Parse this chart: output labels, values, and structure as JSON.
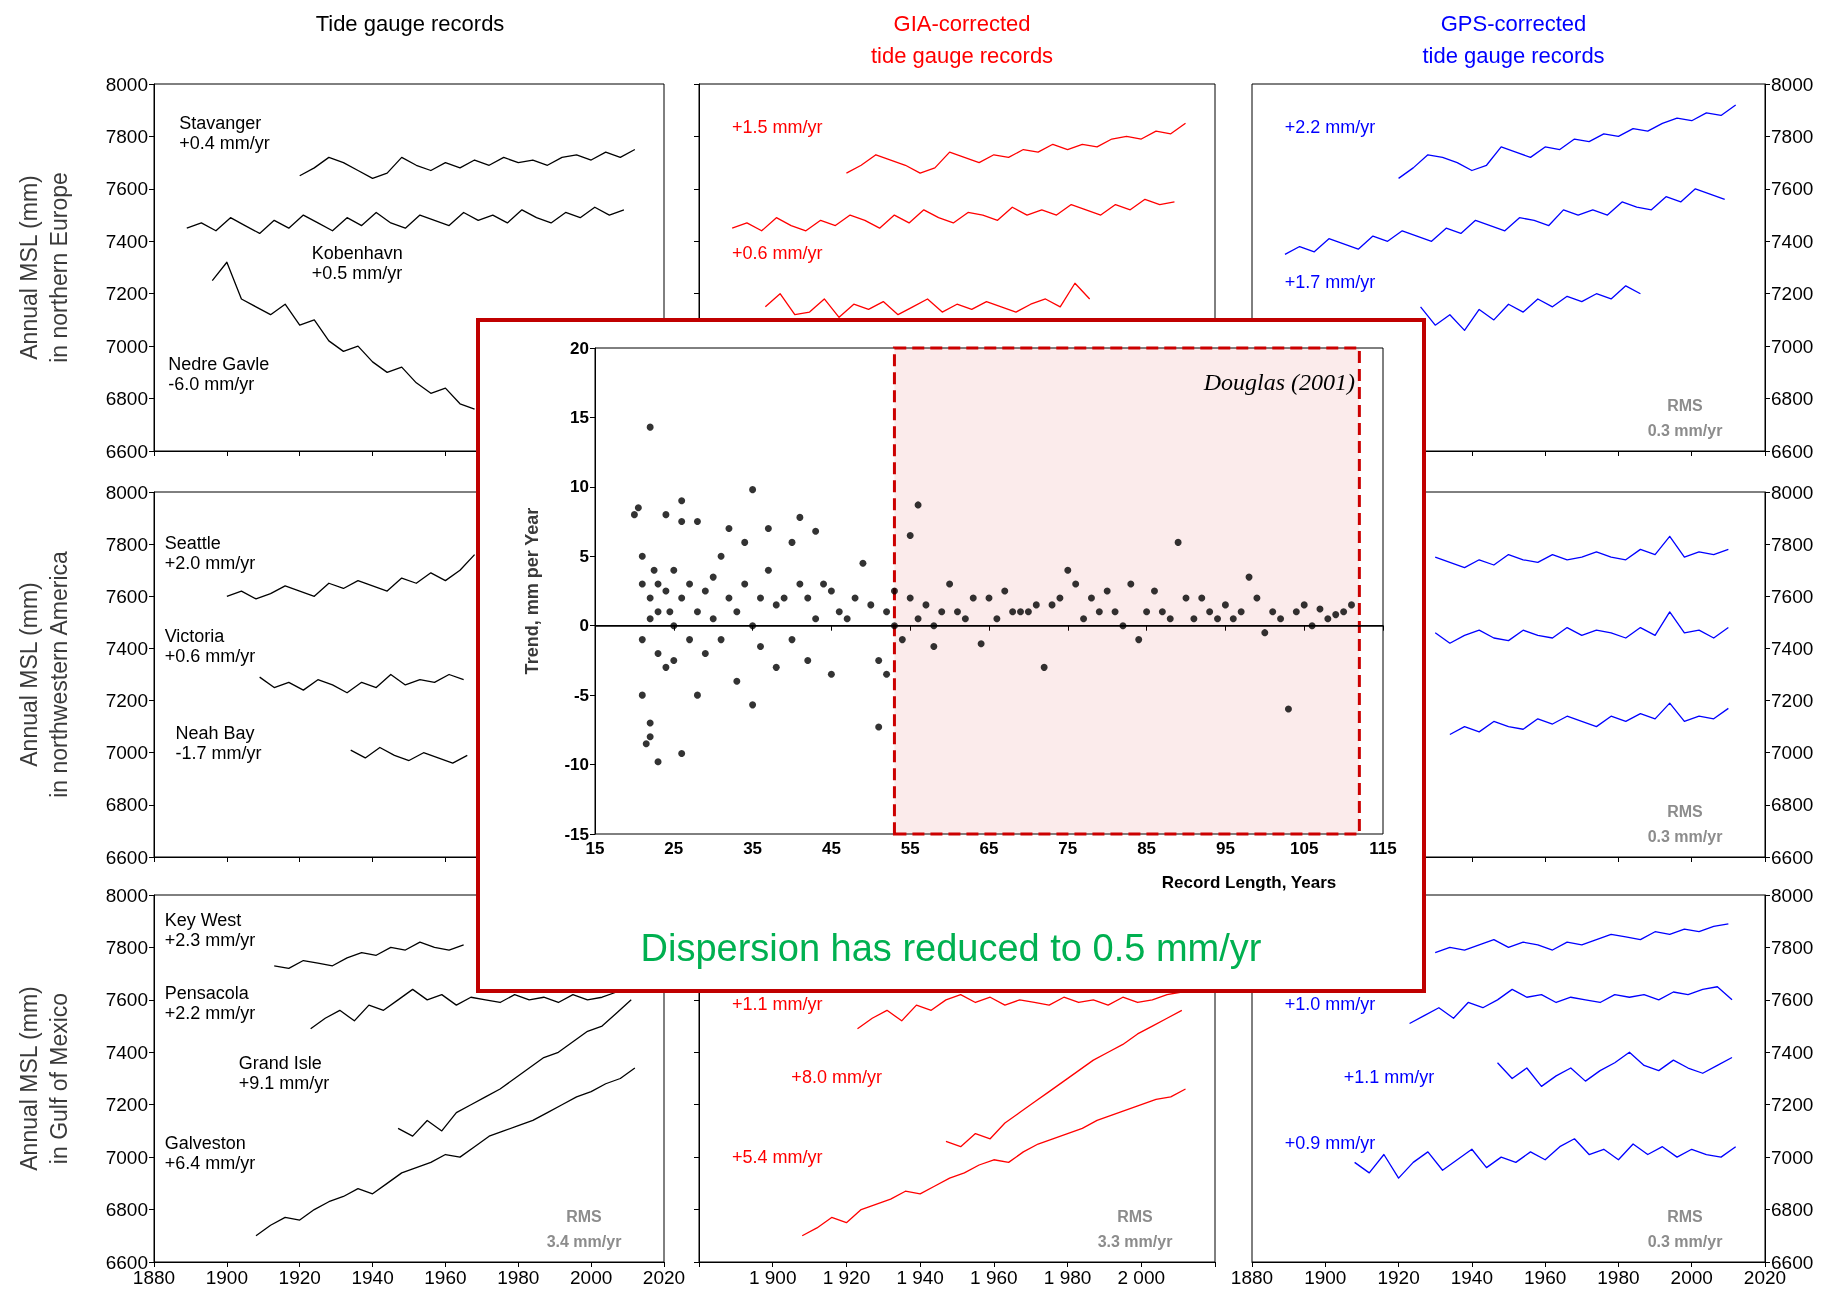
{
  "chart_data": [
    {
      "type": "line",
      "title": "Tide gauge records",
      "ylabel": "Annual MSL (mm)\nin northern Europe",
      "xlim": [
        1880,
        2020
      ],
      "ylim": [
        6600,
        8000
      ],
      "xticks": [
        1880,
        1900,
        1920,
        1940,
        1960,
        1980,
        2000,
        2020
      ],
      "yticks": [
        6600,
        6800,
        7000,
        7200,
        7400,
        7600,
        7800,
        8000
      ],
      "tick_labels": "y",
      "marker": "none",
      "series": [
        {
          "color": "#000000",
          "x": [
            1920,
            1924,
            1928,
            1932,
            1936,
            1940,
            1944,
            1948,
            1952,
            1956,
            1960,
            1964,
            1968,
            1972,
            1976,
            1980,
            1984,
            1988,
            1992,
            1996,
            2000,
            2004,
            2008,
            2012
          ],
          "values": [
            7650,
            7680,
            7720,
            7700,
            7670,
            7640,
            7660,
            7720,
            7690,
            7670,
            7700,
            7680,
            7710,
            7690,
            7720,
            7700,
            7710,
            7690,
            7720,
            7730,
            7710,
            7740,
            7720,
            7750
          ]
        },
        {
          "color": "#000000",
          "x": [
            1889,
            1893,
            1897,
            1901,
            1905,
            1909,
            1913,
            1917,
            1921,
            1925,
            1929,
            1933,
            1937,
            1941,
            1945,
            1949,
            1953,
            1957,
            1961,
            1965,
            1969,
            1973,
            1977,
            1981,
            1985,
            1989,
            1993,
            1997,
            2001,
            2005,
            2009
          ],
          "values": [
            7450,
            7470,
            7440,
            7490,
            7460,
            7430,
            7480,
            7450,
            7500,
            7470,
            7440,
            7490,
            7460,
            7510,
            7470,
            7450,
            7500,
            7480,
            7460,
            7510,
            7480,
            7500,
            7470,
            7520,
            7490,
            7470,
            7510,
            7490,
            7530,
            7500,
            7520
          ]
        },
        {
          "color": "#000000",
          "x": [
            1896,
            1900,
            1904,
            1908,
            1912,
            1916,
            1920,
            1924,
            1928,
            1932,
            1936,
            1940,
            1944,
            1948,
            1952,
            1956,
            1960,
            1964,
            1968
          ],
          "values": [
            7250,
            7320,
            7180,
            7150,
            7120,
            7160,
            7080,
            7100,
            7020,
            6980,
            7000,
            6940,
            6900,
            6920,
            6860,
            6820,
            6840,
            6780,
            6760
          ]
        }
      ],
      "annotations": [
        "Stavanger\n+0.4 mm/yr",
        "Kobenhavn\n+0.5 mm/yr",
        "Nedre Gavle\n-6.0 mm/yr"
      ]
    },
    {
      "type": "line",
      "title": "GIA-corrected\ntide gauge records",
      "xlim": [
        1880,
        2020
      ],
      "ylim": [
        6600,
        8000
      ],
      "xticks": [
        1880,
        1900,
        1920,
        1940,
        1960,
        1980,
        2000,
        2020
      ],
      "yticks": [
        6600,
        6800,
        7000,
        7200,
        7400,
        7600,
        7800,
        8000
      ],
      "tick_labels": false,
      "marker": "none",
      "series": [
        {
          "color": "#ff0000",
          "x": [
            1920,
            1924,
            1928,
            1932,
            1936,
            1940,
            1944,
            1948,
            1952,
            1956,
            1960,
            1964,
            1968,
            1972,
            1976,
            1980,
            1984,
            1988,
            1992,
            1996,
            2000,
            2004,
            2008,
            2012
          ],
          "values": [
            7660,
            7690,
            7730,
            7710,
            7690,
            7660,
            7680,
            7740,
            7720,
            7700,
            7730,
            7720,
            7750,
            7740,
            7770,
            7750,
            7770,
            7760,
            7790,
            7800,
            7790,
            7820,
            7810,
            7850
          ]
        },
        {
          "color": "#ff0000",
          "x": [
            1889,
            1893,
            1897,
            1901,
            1905,
            1909,
            1913,
            1917,
            1921,
            1925,
            1929,
            1933,
            1937,
            1941,
            1945,
            1949,
            1953,
            1957,
            1961,
            1965,
            1969,
            1973,
            1977,
            1981,
            1985,
            1989,
            1993,
            1997,
            2001,
            2005,
            2009
          ],
          "values": [
            7450,
            7470,
            7440,
            7490,
            7460,
            7440,
            7480,
            7460,
            7500,
            7480,
            7450,
            7500,
            7470,
            7520,
            7490,
            7470,
            7510,
            7500,
            7480,
            7530,
            7500,
            7520,
            7500,
            7540,
            7520,
            7500,
            7540,
            7520,
            7560,
            7540,
            7550
          ]
        },
        {
          "color": "#ff0000",
          "x": [
            1898,
            1902,
            1906,
            1910,
            1914,
            1918,
            1922,
            1926,
            1930,
            1934,
            1938,
            1942,
            1946,
            1950,
            1954,
            1958,
            1962,
            1966,
            1970,
            1974,
            1978,
            1982,
            1986
          ],
          "values": [
            7150,
            7200,
            7120,
            7130,
            7180,
            7110,
            7160,
            7140,
            7170,
            7120,
            7150,
            7180,
            7130,
            7160,
            7140,
            7170,
            7150,
            7130,
            7160,
            7180,
            7150,
            7240,
            7180
          ]
        }
      ],
      "annotations": [
        "+1.5 mm/yr",
        "+0.6 mm/yr"
      ]
    },
    {
      "type": "line",
      "title": "GPS-corrected\ntide gauge records",
      "xlim": [
        1880,
        2020
      ],
      "ylim": [
        6600,
        8000
      ],
      "xticks": [
        1880,
        1900,
        1920,
        1940,
        1960,
        1980,
        2000,
        2020
      ],
      "yticks": [
        6600,
        6800,
        7000,
        7200,
        7400,
        7600,
        7800,
        8000
      ],
      "tick_labels": "y",
      "marker": "none",
      "series": [
        {
          "color": "#0000ff",
          "x": [
            1920,
            1924,
            1928,
            1932,
            1936,
            1940,
            1944,
            1948,
            1952,
            1956,
            1960,
            1964,
            1968,
            1972,
            1976,
            1980,
            1984,
            1988,
            1992,
            1996,
            2000,
            2004,
            2008,
            2012
          ],
          "values": [
            7640,
            7680,
            7730,
            7720,
            7700,
            7670,
            7690,
            7760,
            7740,
            7720,
            7760,
            7750,
            7790,
            7780,
            7810,
            7800,
            7830,
            7820,
            7850,
            7870,
            7860,
            7890,
            7880,
            7920
          ]
        },
        {
          "color": "#0000ff",
          "x": [
            1889,
            1893,
            1897,
            1901,
            1905,
            1909,
            1913,
            1917,
            1921,
            1925,
            1929,
            1933,
            1937,
            1941,
            1945,
            1949,
            1953,
            1957,
            1961,
            1965,
            1969,
            1973,
            1977,
            1981,
            1985,
            1989,
            1993,
            1997,
            2001,
            2005,
            2009
          ],
          "values": [
            7350,
            7380,
            7360,
            7410,
            7390,
            7370,
            7420,
            7400,
            7440,
            7420,
            7400,
            7450,
            7430,
            7480,
            7460,
            7440,
            7490,
            7480,
            7460,
            7520,
            7500,
            7520,
            7500,
            7550,
            7530,
            7520,
            7570,
            7550,
            7600,
            7580,
            7560
          ]
        },
        {
          "color": "#0000ff",
          "x": [
            1926,
            1930,
            1934,
            1938,
            1942,
            1946,
            1950,
            1954,
            1958,
            1962,
            1966,
            1970,
            1974,
            1978,
            1982,
            1986
          ],
          "values": [
            7150,
            7080,
            7120,
            7060,
            7140,
            7100,
            7160,
            7130,
            7180,
            7150,
            7190,
            7170,
            7200,
            7180,
            7230,
            7200
          ]
        }
      ],
      "annotations": [
        "+2.2 mm/yr",
        "+1.7 mm/yr",
        "RMS\n0.3 mm/yr"
      ]
    },
    {
      "type": "line",
      "ylabel": "Annual MSL (mm)\nin northwestern America",
      "xlim": [
        1880,
        2020
      ],
      "ylim": [
        6600,
        8000
      ],
      "xticks": [
        1880,
        1900,
        1920,
        1940,
        1960,
        1980,
        2000,
        2020
      ],
      "yticks": [
        6600,
        6800,
        7000,
        7200,
        7400,
        7600,
        7800,
        8000
      ],
      "tick_labels": "y",
      "marker": "none",
      "series": [
        {
          "color": "#000000",
          "x": [
            1900,
            1904,
            1908,
            1912,
            1916,
            1920,
            1924,
            1928,
            1932,
            1936,
            1940,
            1944,
            1948,
            1952,
            1956,
            1960,
            1964,
            1968
          ],
          "values": [
            7600,
            7620,
            7590,
            7610,
            7640,
            7620,
            7600,
            7650,
            7630,
            7660,
            7640,
            7620,
            7670,
            7650,
            7690,
            7660,
            7700,
            7760
          ]
        },
        {
          "color": "#000000",
          "x": [
            1909,
            1913,
            1917,
            1921,
            1925,
            1929,
            1933,
            1937,
            1941,
            1945,
            1949,
            1953,
            1957,
            1961,
            1965
          ],
          "values": [
            7290,
            7250,
            7270,
            7240,
            7280,
            7260,
            7230,
            7270,
            7250,
            7300,
            7260,
            7280,
            7270,
            7300,
            7280
          ]
        },
        {
          "color": "#000000",
          "x": [
            1934,
            1938,
            1942,
            1946,
            1950,
            1954,
            1958,
            1962,
            1966
          ],
          "values": [
            7010,
            6980,
            7020,
            6990,
            6970,
            7000,
            6980,
            6960,
            6990
          ]
        }
      ],
      "annotations": [
        "Seattle\n+2.0 mm/yr",
        "Victoria\n+0.6 mm/yr",
        "Neah Bay\n-1.7 mm/yr"
      ]
    },
    {
      "type": "line",
      "xlim": [
        1880,
        2020
      ],
      "ylim": [
        6600,
        8000
      ],
      "xticks": [
        1880,
        1900,
        1920,
        1940,
        1960,
        1980,
        2000,
        2020
      ],
      "yticks": [
        6600,
        6800,
        7000,
        7200,
        7400,
        7600,
        7800,
        8000
      ],
      "tick_labels": "y",
      "marker": "none",
      "series": [
        {
          "color": "#0000ff",
          "x": [
            1930,
            1934,
            1938,
            1942,
            1946,
            1950,
            1954,
            1958,
            1962,
            1966,
            1970,
            1974,
            1978,
            1982,
            1986,
            1990,
            1994,
            1998,
            2002,
            2006,
            2010
          ],
          "values": [
            7750,
            7730,
            7710,
            7740,
            7720,
            7760,
            7740,
            7730,
            7760,
            7740,
            7750,
            7770,
            7750,
            7740,
            7780,
            7760,
            7830,
            7750,
            7770,
            7760,
            7780
          ]
        },
        {
          "color": "#0000ff",
          "x": [
            1930,
            1934,
            1938,
            1942,
            1946,
            1950,
            1954,
            1958,
            1962,
            1966,
            1970,
            1974,
            1978,
            1982,
            1986,
            1990,
            1994,
            1998,
            2002,
            2006,
            2010
          ],
          "values": [
            7460,
            7420,
            7450,
            7470,
            7440,
            7430,
            7470,
            7450,
            7440,
            7480,
            7450,
            7470,
            7460,
            7440,
            7480,
            7450,
            7540,
            7460,
            7470,
            7440,
            7480
          ]
        },
        {
          "color": "#0000ff",
          "x": [
            1934,
            1938,
            1942,
            1946,
            1950,
            1954,
            1958,
            1962,
            1966,
            1970,
            1974,
            1978,
            1982,
            1986,
            1990,
            1994,
            1998,
            2002,
            2006,
            2010
          ],
          "values": [
            7070,
            7100,
            7080,
            7120,
            7100,
            7090,
            7130,
            7110,
            7140,
            7120,
            7100,
            7140,
            7120,
            7150,
            7130,
            7190,
            7120,
            7140,
            7130,
            7170
          ]
        }
      ],
      "annotations": [
        "RMS\n0.3 mm/yr"
      ]
    },
    {
      "type": "line",
      "ylabel": "Annual MSL (mm)\nin Gulf of Mexico",
      "xlim": [
        1880,
        2020
      ],
      "ylim": [
        6600,
        8000
      ],
      "xticks": [
        1880,
        1900,
        1920,
        1940,
        1960,
        1980,
        2000,
        2020
      ],
      "yticks": [
        6600,
        6800,
        7000,
        7200,
        7400,
        7600,
        7800,
        8000
      ],
      "marker": "none",
      "series": [
        {
          "color": "#000000",
          "x": [
            1913,
            1917,
            1921,
            1925,
            1929,
            1933,
            1937,
            1941,
            1945,
            1949,
            1953,
            1957,
            1961,
            1965
          ],
          "values": [
            7730,
            7720,
            7750,
            7740,
            7730,
            7760,
            7780,
            7770,
            7800,
            7790,
            7820,
            7800,
            7790,
            7810
          ]
        },
        {
          "color": "#000000",
          "x": [
            1923,
            1927,
            1931,
            1935,
            1939,
            1943,
            1947,
            1951,
            1955,
            1959,
            1963,
            1967,
            1971,
            1975,
            1979,
            1983,
            1987,
            1991,
            1995,
            1999,
            2003,
            2007
          ],
          "values": [
            7490,
            7530,
            7560,
            7520,
            7580,
            7560,
            7600,
            7640,
            7600,
            7620,
            7580,
            7610,
            7600,
            7590,
            7620,
            7600,
            7610,
            7590,
            7620,
            7600,
            7610,
            7630
          ]
        },
        {
          "color": "#000000",
          "x": [
            1947,
            1951,
            1955,
            1959,
            1963,
            1967,
            1971,
            1975,
            1979,
            1983,
            1987,
            1991,
            1995,
            1999,
            2003,
            2007,
            2011
          ],
          "values": [
            7110,
            7080,
            7140,
            7100,
            7170,
            7200,
            7230,
            7260,
            7300,
            7340,
            7380,
            7400,
            7440,
            7480,
            7500,
            7550,
            7600
          ]
        },
        {
          "color": "#000000",
          "x": [
            1908,
            1912,
            1916,
            1920,
            1924,
            1928,
            1932,
            1936,
            1940,
            1944,
            1948,
            1952,
            1956,
            1960,
            1964,
            1968,
            1972,
            1976,
            1980,
            1984,
            1988,
            1992,
            1996,
            2000,
            2004,
            2008,
            2012
          ],
          "values": [
            6700,
            6740,
            6770,
            6760,
            6800,
            6830,
            6850,
            6880,
            6860,
            6900,
            6940,
            6960,
            6980,
            7010,
            7000,
            7040,
            7080,
            7100,
            7120,
            7140,
            7170,
            7200,
            7230,
            7250,
            7280,
            7300,
            7340
          ]
        }
      ],
      "annotations": [
        "Key West\n+2.3 mm/yr",
        "Pensacola\n+2.2 mm/yr",
        "Grand Isle\n+9.1 mm/yr",
        "Galveston\n+6.4 mm/yr",
        "RMS\n3.4 mm/yr"
      ]
    },
    {
      "type": "line",
      "xlim": [
        1880,
        2020
      ],
      "ylim": [
        6600,
        8000
      ],
      "xticks": [
        {
          "value": 1880,
          "label": null
        },
        {
          "value": 1900,
          "label": "1 900"
        },
        {
          "value": 1920,
          "label": "1 920"
        },
        {
          "value": 1940,
          "label": "1 940"
        },
        {
          "value": 1960,
          "label": "1 960"
        },
        {
          "value": 1980,
          "label": "1 980"
        },
        {
          "value": 2000,
          "label": "2 000"
        },
        {
          "value": 2020,
          "label": null
        }
      ],
      "yticks": [
        6600,
        6800,
        7000,
        7200,
        7400,
        7600,
        7800,
        8000
      ],
      "tick_labels": "x",
      "marker": "none",
      "series": [
        {
          "color": "#ff0000",
          "x": [
            1923,
            1927,
            1931,
            1935,
            1939,
            1943,
            1947,
            1951,
            1955,
            1959,
            1963,
            1967,
            1971,
            1975,
            1979,
            1983,
            1987,
            1991,
            1995,
            1999,
            2003,
            2007,
            2011
          ],
          "values": [
            7490,
            7530,
            7560,
            7520,
            7580,
            7560,
            7600,
            7620,
            7590,
            7610,
            7580,
            7600,
            7590,
            7580,
            7610,
            7590,
            7600,
            7580,
            7610,
            7590,
            7600,
            7620,
            7630
          ]
        },
        {
          "color": "#ff0000",
          "x": [
            1947,
            1951,
            1955,
            1959,
            1963,
            1967,
            1971,
            1975,
            1979,
            1983,
            1987,
            1991,
            1995,
            1999,
            2003,
            2007,
            2011
          ],
          "values": [
            7060,
            7040,
            7090,
            7070,
            7130,
            7170,
            7210,
            7250,
            7290,
            7330,
            7370,
            7400,
            7430,
            7470,
            7500,
            7530,
            7560
          ]
        },
        {
          "color": "#ff0000",
          "x": [
            1908,
            1912,
            1916,
            1920,
            1924,
            1928,
            1932,
            1936,
            1940,
            1944,
            1948,
            1952,
            1956,
            1960,
            1964,
            1968,
            1972,
            1976,
            1980,
            1984,
            1988,
            1992,
            1996,
            2000,
            2004,
            2008,
            2012
          ],
          "values": [
            6700,
            6730,
            6770,
            6750,
            6800,
            6820,
            6840,
            6870,
            6860,
            6890,
            6920,
            6940,
            6970,
            6990,
            6980,
            7020,
            7050,
            7070,
            7090,
            7110,
            7140,
            7160,
            7180,
            7200,
            7220,
            7230,
            7260
          ]
        }
      ],
      "annotations": [
        "+1.1 mm/yr",
        "+8.0 mm/yr",
        "+5.4 mm/yr",
        "RMS\n3.3 mm/yr"
      ]
    },
    {
      "type": "line",
      "xlim": [
        1880,
        2020
      ],
      "ylim": [
        6600,
        8000
      ],
      "xticks": [
        1880,
        1900,
        1920,
        1940,
        1960,
        1980,
        2000,
        2020
      ],
      "yticks": [
        6600,
        6800,
        7000,
        7200,
        7400,
        7600,
        7800,
        8000
      ],
      "marker": "none",
      "series": [
        {
          "color": "#0000ff",
          "x": [
            1930,
            1934,
            1938,
            1942,
            1946,
            1950,
            1954,
            1958,
            1962,
            1966,
            1970,
            1974,
            1978,
            1982,
            1986,
            1990,
            1994,
            1998,
            2002,
            2006,
            2010
          ],
          "values": [
            7780,
            7800,
            7790,
            7810,
            7830,
            7800,
            7820,
            7810,
            7790,
            7820,
            7810,
            7830,
            7850,
            7840,
            7830,
            7860,
            7850,
            7870,
            7860,
            7880,
            7890
          ]
        },
        {
          "color": "#0000ff",
          "x": [
            1923,
            1927,
            1931,
            1935,
            1939,
            1943,
            1947,
            1951,
            1955,
            1959,
            1963,
            1967,
            1971,
            1975,
            1979,
            1983,
            1987,
            1991,
            1995,
            1999,
            2003,
            2007,
            2011
          ],
          "values": [
            7510,
            7540,
            7570,
            7530,
            7590,
            7570,
            7600,
            7640,
            7610,
            7620,
            7590,
            7610,
            7600,
            7590,
            7620,
            7610,
            7620,
            7600,
            7630,
            7620,
            7640,
            7650,
            7600
          ]
        },
        {
          "color": "#0000ff",
          "x": [
            1947,
            1951,
            1955,
            1959,
            1963,
            1967,
            1971,
            1975,
            1979,
            1983,
            1987,
            1991,
            1995,
            1999,
            2003,
            2007,
            2011
          ],
          "values": [
            7360,
            7300,
            7340,
            7270,
            7310,
            7340,
            7290,
            7330,
            7360,
            7400,
            7350,
            7330,
            7370,
            7340,
            7320,
            7350,
            7380
          ]
        },
        {
          "color": "#0000ff",
          "x": [
            1908,
            1912,
            1916,
            1920,
            1924,
            1928,
            1932,
            1936,
            1940,
            1944,
            1948,
            1952,
            1956,
            1960,
            1964,
            1968,
            1972,
            1976,
            1980,
            1984,
            1988,
            1992,
            1996,
            2000,
            2004,
            2008,
            2012
          ],
          "values": [
            6980,
            6940,
            7010,
            6920,
            6980,
            7020,
            6950,
            6990,
            7030,
            6960,
            7000,
            6980,
            7020,
            6990,
            7040,
            7070,
            7010,
            7030,
            6990,
            7050,
            7010,
            7040,
            7000,
            7030,
            7010,
            7000,
            7040
          ]
        }
      ],
      "annotations": [
        "+1.0 mm/yr",
        "+1.1 mm/yr",
        "+0.9 mm/yr",
        "RMS\n0.3 mm/yr"
      ]
    },
    {
      "type": "scatter",
      "xlabel": "Record Length, Years",
      "ylabel": "Trend, mm per Year",
      "xlim": [
        15,
        115
      ],
      "ylim": [
        -15,
        20
      ],
      "xticks": [
        15,
        25,
        35,
        45,
        55,
        65,
        75,
        85,
        95,
        105,
        115
      ],
      "yticks": [
        -15,
        -10,
        -5,
        0,
        5,
        10,
        15,
        20
      ],
      "marker": "circle",
      "color": "#000000",
      "x": [
        20,
        20.5,
        21,
        21,
        21,
        21,
        21.5,
        22,
        22,
        22,
        22,
        22,
        22.5,
        23,
        23,
        23,
        23,
        24,
        24,
        24,
        24.5,
        25,
        25,
        25,
        26,
        26,
        26,
        26,
        27,
        27,
        28,
        28,
        28,
        29,
        29,
        30,
        30,
        31,
        31,
        32,
        32,
        33,
        33,
        34,
        34,
        35,
        35,
        35,
        36,
        36,
        37,
        37,
        38,
        38,
        39,
        40,
        40,
        41,
        41,
        42,
        42,
        43,
        43,
        44,
        45,
        45,
        46,
        47,
        48,
        49,
        50,
        51,
        51,
        52,
        52,
        53,
        53,
        54,
        55,
        55,
        56,
        56,
        57,
        58,
        58,
        59,
        60,
        61,
        62,
        63,
        64,
        65,
        66,
        67,
        68,
        69,
        70,
        71,
        72,
        73,
        74,
        75,
        76,
        77,
        78,
        79,
        80,
        81,
        82,
        83,
        84,
        85,
        86,
        87,
        88,
        89,
        90,
        91,
        92,
        93,
        94,
        95,
        96,
        97,
        98,
        99,
        100,
        101,
        102,
        103,
        104,
        105,
        106,
        107,
        108,
        109,
        110,
        111
      ],
      "values": [
        8,
        8.5,
        -1,
        3,
        5,
        -5,
        -8.5,
        14.3,
        -8,
        -7,
        2,
        0.5,
        4,
        -9.8,
        3,
        -2,
        1,
        2.5,
        -3,
        8,
        1,
        -2.5,
        4,
        0,
        7.5,
        -9.2,
        9,
        2,
        -1,
        3,
        7.5,
        -5,
        1,
        2.5,
        -2,
        3.5,
        0.5,
        5,
        -1,
        7,
        2,
        -4,
        1,
        6,
        3,
        9.8,
        -5.7,
        0,
        2,
        -1.5,
        4,
        7,
        -3,
        1.5,
        2,
        6,
        -1,
        7.8,
        3,
        -2.5,
        2,
        6.8,
        0.5,
        3,
        -3.5,
        2.5,
        1,
        0.5,
        2,
        4.5,
        1.5,
        -7.3,
        -2.5,
        -3.5,
        1,
        2.5,
        0,
        -1,
        6.5,
        2,
        8.7,
        0.5,
        1.5,
        -1.5,
        0,
        1,
        3,
        1,
        0.5,
        2,
        -1.3,
        2,
        0.5,
        2.5,
        1,
        1,
        1,
        1.5,
        -3,
        1.5,
        2,
        4,
        3,
        0.5,
        2,
        1,
        2.5,
        1,
        0,
        3,
        -1,
        1,
        2.5,
        1,
        0.5,
        6,
        2,
        0.5,
        2,
        1,
        0.5,
        1.5,
        0.5,
        1,
        3.5,
        2,
        -0.5,
        1,
        0.5,
        -6,
        1,
        1.5,
        0,
        1.2,
        0.5,
        0.8,
        1,
        1.5
      ],
      "ref_lines": [
        {
          "axis": "y",
          "value": 0
        }
      ],
      "bands": [
        {
          "axis": "x",
          "from": 53,
          "to": 112,
          "color": "#cc0000"
        }
      ],
      "annotations": [
        "Douglas (2001)",
        "Dispersion has reduced to 0.5 mm/yr"
      ]
    }
  ]
}
